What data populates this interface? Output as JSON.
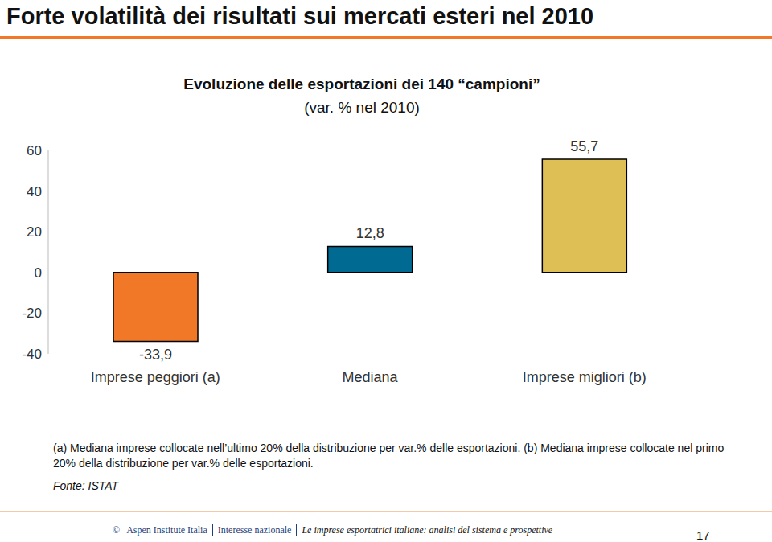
{
  "slide": {
    "title": "Forte volatilità dei risultati sui mercati esteri nel 2010",
    "notes": "(a) Mediana imprese collocate nell’ultimo 20% della distribuzione per var.% delle esportazioni. (b) Mediana imprese collocate nel primo 20% della distribuzione per var.% delle esportazioni.",
    "source": "Fonte: ISTAT",
    "footer": {
      "copyright": "©",
      "items": [
        "Aspen Institute Italia",
        "Interesse nazionale",
        "Le imprese esportatrici italiane: analisi del sistema e prospettive"
      ]
    },
    "page_number": 17
  },
  "chart_data": {
    "type": "bar",
    "title": "Evoluzione delle esportazioni dei 140 “campioni”",
    "subtitle": "(var. % nel 2010)",
    "categories": [
      "Imprese peggiori (a)",
      "Mediana",
      "Imprese migliori (b)"
    ],
    "values": [
      -33.9,
      12.8,
      55.7
    ],
    "value_labels": [
      "-33,9",
      "12,8",
      "55,7"
    ],
    "colors": [
      "#F07826",
      "#006A92",
      "#DDBF55"
    ],
    "ylim": [
      -40,
      60
    ],
    "yticks": [
      -40,
      -20,
      0,
      20,
      40,
      60
    ],
    "grid": false,
    "data_labels": true
  }
}
